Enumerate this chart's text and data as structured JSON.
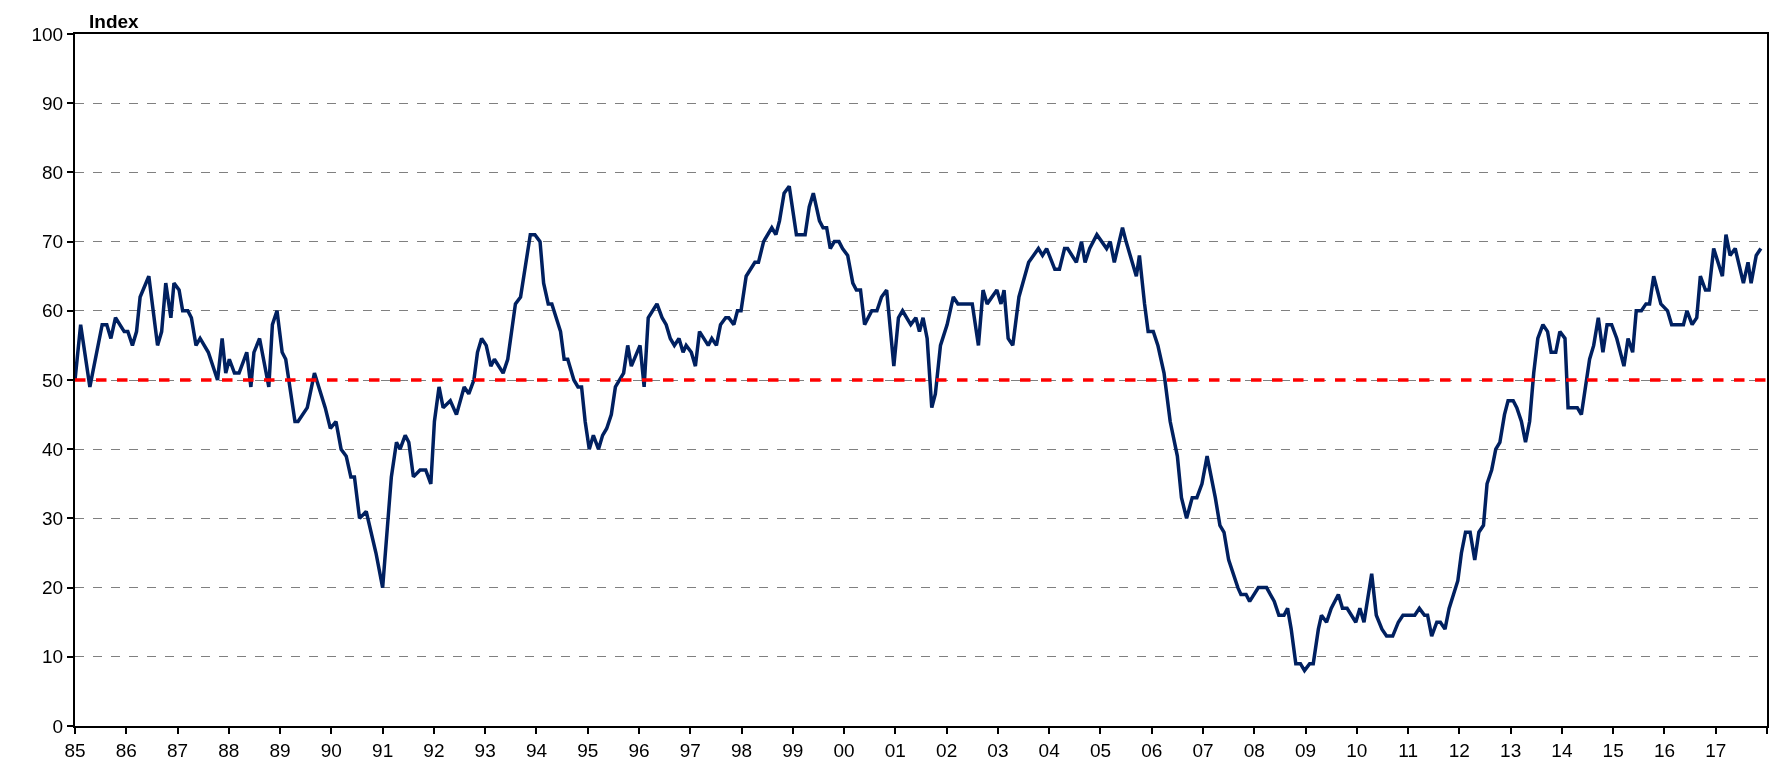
{
  "chart_data": {
    "type": "line",
    "ylabel": "Index",
    "xlim": [
      1985,
      2018
    ],
    "ylim": [
      0,
      100
    ],
    "xticks": [
      {
        "value": 1985,
        "label": "85"
      },
      {
        "value": 1986,
        "label": "86"
      },
      {
        "value": 1987,
        "label": "87"
      },
      {
        "value": 1988,
        "label": "88"
      },
      {
        "value": 1989,
        "label": "89"
      },
      {
        "value": 1990,
        "label": "90"
      },
      {
        "value": 1991,
        "label": "91"
      },
      {
        "value": 1992,
        "label": "92"
      },
      {
        "value": 1993,
        "label": "93"
      },
      {
        "value": 1994,
        "label": "94"
      },
      {
        "value": 1995,
        "label": "95"
      },
      {
        "value": 1996,
        "label": "96"
      },
      {
        "value": 1997,
        "label": "97"
      },
      {
        "value": 1998,
        "label": "98"
      },
      {
        "value": 1999,
        "label": "99"
      },
      {
        "value": 2000,
        "label": "00"
      },
      {
        "value": 2001,
        "label": "01"
      },
      {
        "value": 2002,
        "label": "02"
      },
      {
        "value": 2003,
        "label": "03"
      },
      {
        "value": 2004,
        "label": "04"
      },
      {
        "value": 2005,
        "label": "05"
      },
      {
        "value": 2006,
        "label": "06"
      },
      {
        "value": 2007,
        "label": "07"
      },
      {
        "value": 2008,
        "label": "08"
      },
      {
        "value": 2009,
        "label": "09"
      },
      {
        "value": 2010,
        "label": "10"
      },
      {
        "value": 2011,
        "label": "11"
      },
      {
        "value": 2012,
        "label": "12"
      },
      {
        "value": 2013,
        "label": "13"
      },
      {
        "value": 2014,
        "label": "14"
      },
      {
        "value": 2015,
        "label": "15"
      },
      {
        "value": 2016,
        "label": "16"
      },
      {
        "value": 2017,
        "label": "17"
      },
      {
        "value": 2018,
        "label": null
      }
    ],
    "yticks": [
      0,
      10,
      20,
      30,
      40,
      50,
      60,
      70,
      80,
      90,
      100
    ],
    "grid": "y",
    "line_style": "solid",
    "marker": "none",
    "ref_lines": [
      {
        "axis": "y",
        "value": 50,
        "color": "#ff0000",
        "line_style": "dashed"
      }
    ],
    "series": [
      {
        "color": "#002060",
        "x": [
          1985.0,
          1985.11,
          1985.29,
          1985.53,
          1985.62,
          1985.7,
          1985.79,
          1985.96,
          1986.03,
          1986.12,
          1986.2,
          1986.27,
          1986.44,
          1986.61,
          1986.69,
          1986.77,
          1986.87,
          1986.93,
          1987.03,
          1987.1,
          1987.2,
          1987.27,
          1987.36,
          1987.44,
          1987.6,
          1987.78,
          1987.87,
          1987.94,
          1988.01,
          1988.11,
          1988.2,
          1988.35,
          1988.43,
          1988.49,
          1988.6,
          1988.78,
          1988.85,
          1988.94,
          1989.04,
          1989.11,
          1989.29,
          1989.35,
          1989.53,
          1989.67,
          1989.88,
          1989.98,
          1990.09,
          1990.19,
          1990.29,
          1990.38,
          1990.45,
          1990.55,
          1990.68,
          1990.87,
          1991.0,
          1991.17,
          1991.27,
          1991.34,
          1991.44,
          1991.51,
          1991.6,
          1991.73,
          1991.84,
          1991.94,
          1992.01,
          1992.1,
          1992.18,
          1992.32,
          1992.44,
          1992.59,
          1992.68,
          1992.78,
          1992.85,
          1992.93,
          1993.02,
          1993.11,
          1993.18,
          1993.35,
          1993.44,
          1993.59,
          1993.69,
          1993.88,
          1993.97,
          1994.07,
          1994.14,
          1994.23,
          1994.3,
          1994.47,
          1994.54,
          1994.61,
          1994.73,
          1994.81,
          1994.88,
          1994.95,
          1995.03,
          1995.11,
          1995.21,
          1995.29,
          1995.37,
          1995.46,
          1995.54,
          1995.7,
          1995.78,
          1995.85,
          1996.02,
          1996.1,
          1996.18,
          1996.35,
          1996.45,
          1996.53,
          1996.61,
          1996.69,
          1996.78,
          1996.86,
          1996.92,
          1997.02,
          1997.1,
          1997.18,
          1997.35,
          1997.42,
          1997.51,
          1997.59,
          1997.69,
          1997.75,
          1997.85,
          1997.92,
          1997.99,
          1998.09,
          1998.26,
          1998.33,
          1998.43,
          1998.59,
          1998.67,
          1998.74,
          1998.83,
          1998.93,
          1999.07,
          1999.24,
          1999.32,
          1999.4,
          1999.52,
          1999.59,
          1999.66,
          1999.73,
          1999.81,
          1999.9,
          1999.97,
          2000.07,
          2000.17,
          2000.24,
          2000.32,
          2000.4,
          2000.54,
          2000.64,
          2000.73,
          2000.83,
          2000.97,
          2001.06,
          2001.14,
          2001.3,
          2001.4,
          2001.47,
          2001.54,
          2001.62,
          2001.71,
          2001.78,
          2001.88,
          2002.01,
          2002.13,
          2002.22,
          2002.3,
          2002.5,
          2002.62,
          2002.71,
          2002.79,
          2002.98,
          2003.06,
          2003.12,
          2003.2,
          2003.29,
          2003.41,
          2003.6,
          2003.79,
          2003.87,
          2003.95,
          2004.11,
          2004.2,
          2004.3,
          2004.36,
          2004.53,
          2004.63,
          2004.7,
          2004.79,
          2004.93,
          2005.12,
          2005.19,
          2005.27,
          2005.43,
          2005.5,
          2005.7,
          2005.76,
          2005.86,
          2005.93,
          2006.03,
          2006.12,
          2006.24,
          2006.36,
          2006.5,
          2006.58,
          2006.68,
          2006.79,
          2006.88,
          2006.98,
          2007.08,
          2007.24,
          2007.33,
          2007.41,
          2007.5,
          2007.68,
          2007.74,
          2007.84,
          2007.91,
          2008.08,
          2008.24,
          2008.39,
          2008.48,
          2008.58,
          2008.65,
          2008.72,
          2008.81,
          2008.9,
          2008.98,
          2009.08,
          2009.15,
          2009.25,
          2009.31,
          2009.41,
          2009.5,
          2009.64,
          2009.72,
          2009.81,
          2009.98,
          2010.06,
          2010.14,
          2010.29,
          2010.38,
          2010.49,
          2010.58,
          2010.7,
          2010.81,
          2010.9,
          2011.13,
          2011.22,
          2011.32,
          2011.38,
          2011.46,
          2011.56,
          2011.63,
          2011.72,
          2011.8,
          2011.97,
          2012.04,
          2012.12,
          2012.21,
          2012.3,
          2012.38,
          2012.47,
          2012.54,
          2012.63,
          2012.71,
          2012.79,
          2012.88,
          2012.95,
          2013.05,
          2013.12,
          2013.21,
          2013.29,
          2013.37,
          2013.45,
          2013.53,
          2013.63,
          2013.72,
          2013.79,
          2013.88,
          2013.96,
          2014.06,
          2014.12,
          2014.3,
          2014.38,
          2014.54,
          2014.62,
          2014.71,
          2014.8,
          2014.88,
          2014.97,
          2015.07,
          2015.21,
          2015.29,
          2015.38,
          2015.45,
          2015.55,
          2015.64,
          2015.71,
          2015.79,
          2015.93,
          2016.06,
          2016.14,
          2016.37,
          2016.44,
          2016.54,
          2016.63,
          2016.7,
          2016.8,
          2016.87,
          2016.96,
          2017.13,
          2017.2,
          2017.28,
          2017.38,
          2017.54,
          2017.63,
          2017.69,
          2017.79,
          2017.88
        ],
        "values": [
          50,
          58,
          49,
          58,
          58,
          56,
          59,
          57,
          57,
          55,
          57,
          62,
          65,
          55,
          57,
          64,
          59,
          64,
          63,
          60,
          60,
          59,
          55,
          56,
          54,
          50,
          56,
          51,
          53,
          51,
          51,
          54,
          49,
          54,
          56,
          49,
          58,
          60,
          54,
          53,
          44,
          44,
          46,
          51,
          46,
          43,
          44,
          40,
          39,
          36,
          36,
          30,
          31,
          25,
          20,
          36,
          41,
          40,
          42,
          41,
          36,
          37,
          37,
          35,
          44,
          49,
          46,
          47,
          45,
          49,
          48,
          50,
          54,
          56,
          55,
          52,
          53,
          51,
          53,
          61,
          62,
          71,
          71,
          70,
          64,
          61,
          61,
          57,
          53,
          53,
          50,
          49,
          49,
          44,
          40,
          42,
          40,
          42,
          43,
          45,
          49,
          51,
          55,
          52,
          55,
          49,
          59,
          61,
          59,
          58,
          56,
          55,
          56,
          54,
          55,
          54,
          52,
          57,
          55,
          56,
          55,
          58,
          59,
          59,
          58,
          60,
          60,
          65,
          67,
          67,
          70,
          72,
          71,
          73,
          77,
          78,
          71,
          71,
          75,
          77,
          73,
          72,
          72,
          69,
          70,
          70,
          69,
          68,
          64,
          63,
          63,
          58,
          60,
          60,
          62,
          63,
          52,
          59,
          60,
          58,
          59,
          57,
          59,
          56,
          46,
          48,
          55,
          58,
          62,
          61,
          61,
          61,
          55,
          63,
          61,
          63,
          61,
          63,
          56,
          55,
          62,
          67,
          69,
          68,
          69,
          66,
          66,
          69,
          69,
          67,
          70,
          67,
          69,
          71,
          69,
          70,
          67,
          72,
          70,
          65,
          68,
          61,
          57,
          57,
          55,
          51,
          44,
          39,
          33,
          30,
          33,
          33,
          35,
          39,
          33,
          29,
          28,
          24,
          20,
          19,
          19,
          18,
          20,
          20,
          18,
          16,
          16,
          17,
          14,
          9,
          9,
          8,
          9,
          9,
          14,
          16,
          15,
          17,
          19,
          17,
          17,
          15,
          17,
          15,
          22,
          16,
          14,
          13,
          13,
          15,
          16,
          16,
          17,
          16,
          16,
          13,
          15,
          15,
          14,
          17,
          21,
          25,
          28,
          28,
          24,
          28,
          29,
          35,
          37,
          40,
          41,
          45,
          47,
          47,
          46,
          44,
          41,
          44,
          51,
          56,
          58,
          57,
          54,
          54,
          57,
          56,
          46,
          46,
          45,
          53,
          55,
          59,
          54,
          58,
          58,
          56,
          52,
          56,
          54,
          60,
          60,
          61,
          61,
          65,
          61,
          60,
          58,
          58,
          60,
          58,
          59,
          65,
          63,
          63,
          69,
          65,
          71,
          68,
          69,
          64,
          67,
          64,
          68,
          69
        ]
      }
    ]
  }
}
